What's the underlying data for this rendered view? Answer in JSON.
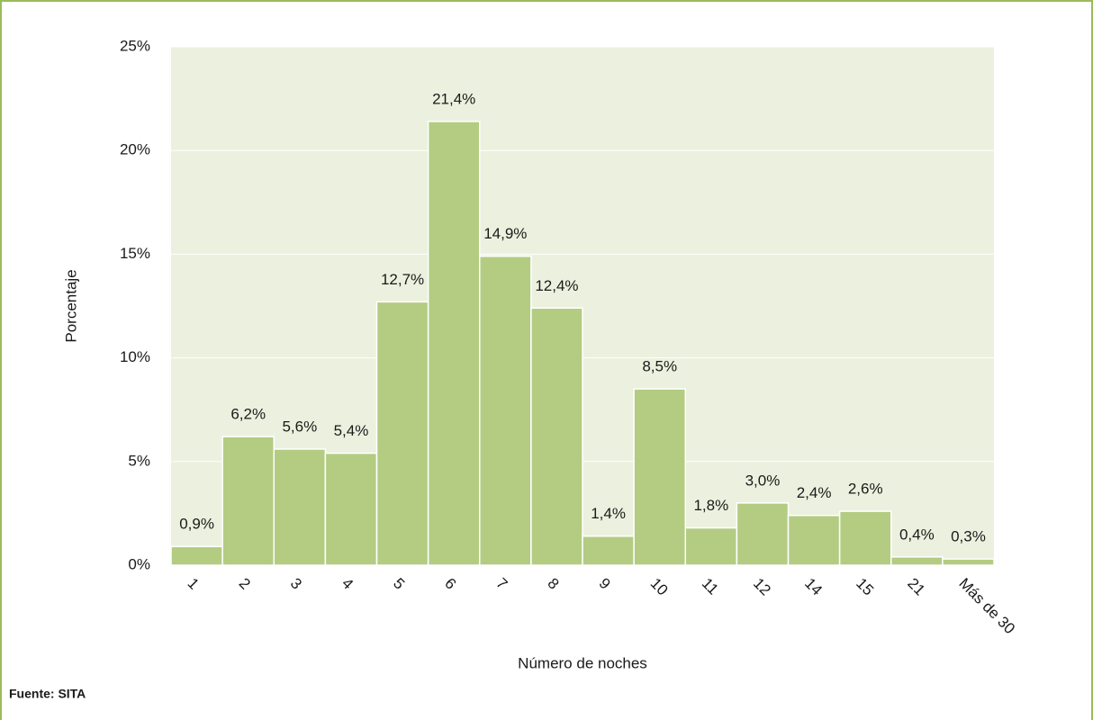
{
  "chart_data": {
    "type": "bar",
    "x_label": "Número de noches",
    "y_label": "Porcentaje",
    "source": "Fuente: SITA",
    "categories": [
      "1",
      "2",
      "3",
      "4",
      "5",
      "6",
      "7",
      "8",
      "9",
      "10",
      "11",
      "12",
      "14",
      "15",
      "21",
      "Más de 30"
    ],
    "values": [
      0.9,
      6.2,
      5.6,
      5.4,
      12.7,
      21.4,
      14.9,
      12.4,
      1.4,
      8.5,
      1.8,
      3.0,
      2.4,
      2.6,
      0.4,
      0.3
    ],
    "value_labels": [
      "0,9%",
      "6,2%",
      "5,6%",
      "5,4%",
      "12,7%",
      "21,4%",
      "14,9%",
      "12,4%",
      "1,4%",
      "8,5%",
      "1,8%",
      "3,0%",
      "2,4%",
      "2,6%",
      "0,4%",
      "0,3%"
    ],
    "color": "#b3cc82",
    "ylim": [
      0,
      25
    ],
    "yticks": [
      {
        "value": 0,
        "label": "0%"
      },
      {
        "value": 5,
        "label": "5%"
      },
      {
        "value": 10,
        "label": "10%"
      },
      {
        "value": 15,
        "label": "15%"
      },
      {
        "value": 20,
        "label": "20%"
      },
      {
        "value": 25,
        "label": "25%"
      }
    ],
    "grid": true
  }
}
